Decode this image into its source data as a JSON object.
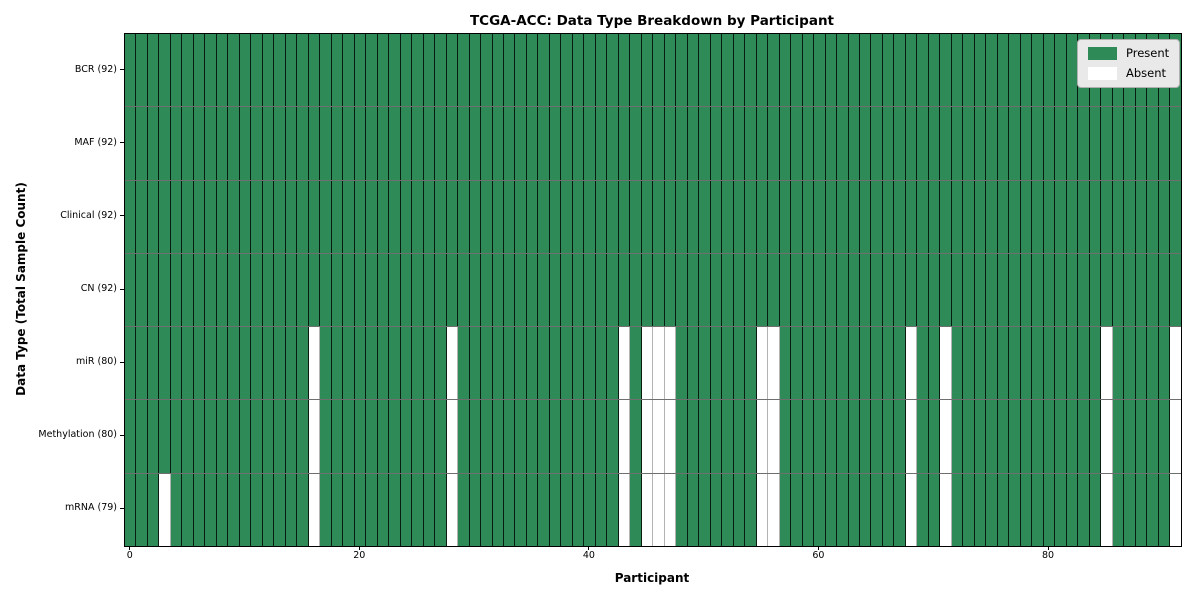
{
  "chart_data": {
    "type": "heatmap",
    "title": "TCGA-ACC: Data Type Breakdown by Participant",
    "xlabel": "Participant",
    "ylabel": "Data Type (Total Sample Count)",
    "n_participants": 92,
    "x_ticks": [
      0,
      20,
      40,
      60,
      80
    ],
    "rows": [
      {
        "label": "BCR (92)",
        "present_count": 92,
        "absent_participants": []
      },
      {
        "label": "MAF (92)",
        "present_count": 92,
        "absent_participants": []
      },
      {
        "label": "Clinical (92)",
        "present_count": 92,
        "absent_participants": []
      },
      {
        "label": "CN (92)",
        "present_count": 92,
        "absent_participants": []
      },
      {
        "label": "miR (80)",
        "present_count": 80,
        "absent_participants": [
          16,
          28,
          43,
          45,
          46,
          47,
          55,
          56,
          68,
          71,
          85,
          91
        ]
      },
      {
        "label": "Methylation (80)",
        "present_count": 80,
        "absent_participants": [
          16,
          28,
          43,
          45,
          46,
          47,
          55,
          56,
          68,
          71,
          85,
          91
        ]
      },
      {
        "label": "mRNA (79)",
        "present_count": 79,
        "absent_participants": [
          3,
          16,
          28,
          43,
          45,
          46,
          47,
          55,
          56,
          68,
          71,
          85,
          91
        ]
      }
    ],
    "legend": [
      {
        "label": "Present",
        "color": "#2e8b57"
      },
      {
        "label": "Absent",
        "color": "#ffffff"
      }
    ],
    "colors": {
      "present": "#2e8b57",
      "absent": "#ffffff"
    },
    "layout": {
      "grid": "cell-borders",
      "legend_position": "upper-right"
    }
  }
}
